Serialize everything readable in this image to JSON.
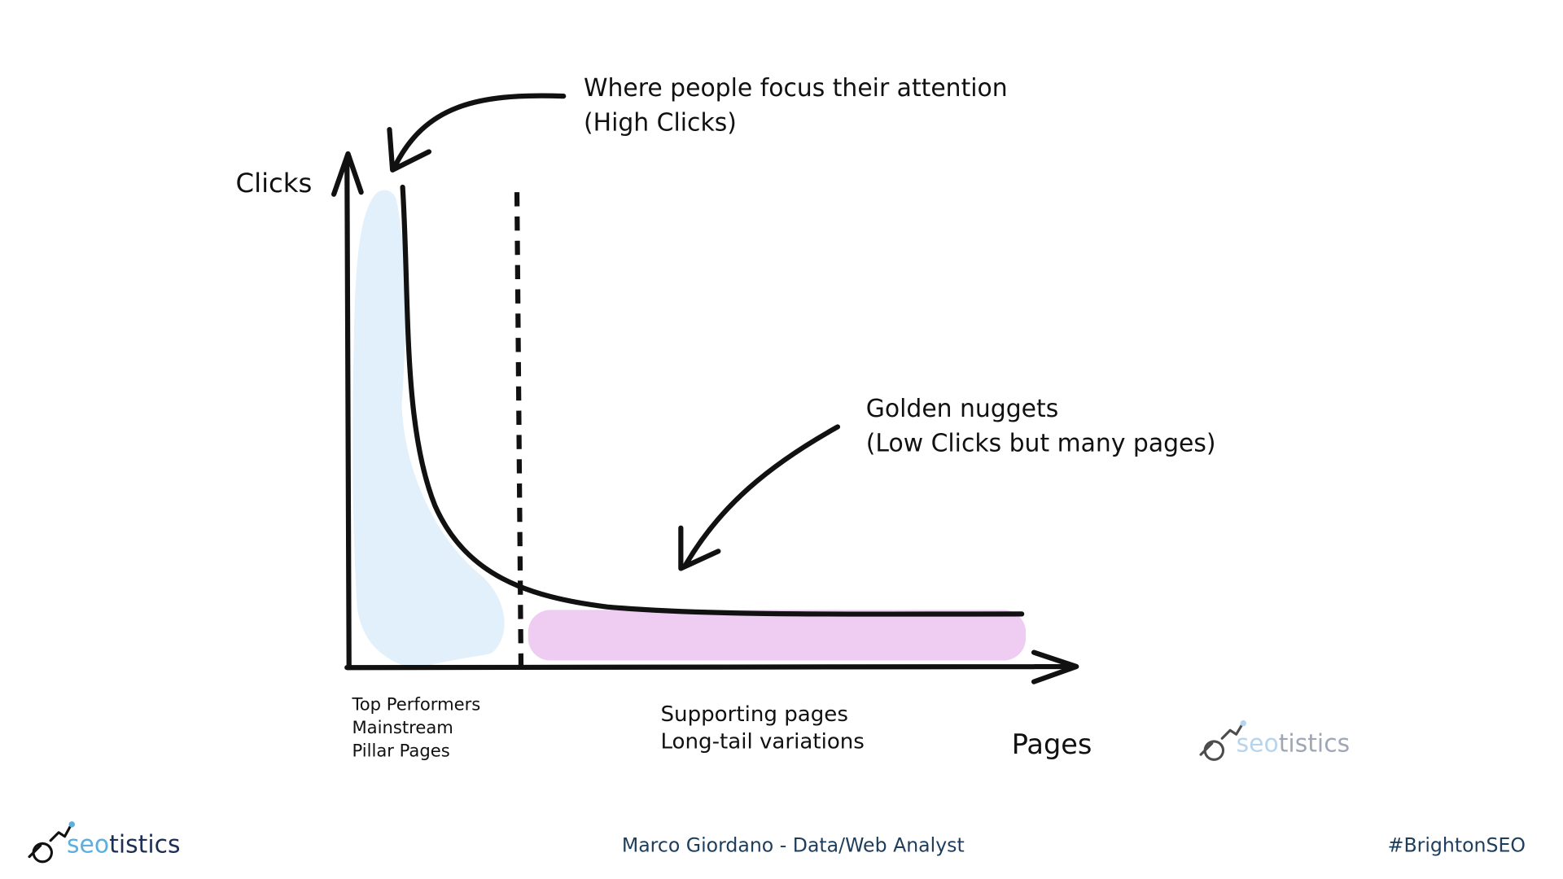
{
  "diagram": {
    "y_axis_label": "Clicks",
    "x_axis_label": "Pages",
    "annotations": [
      {
        "lines": [
          "Where people focus their attention",
          "(High Clicks)"
        ]
      },
      {
        "lines": [
          "Golden nuggets",
          "(Low Clicks but many pages)"
        ]
      }
    ],
    "regions": [
      {
        "lines": [
          "Top Performers",
          "Mainstream",
          "Pillar Pages"
        ]
      },
      {
        "lines": [
          "Supporting pages",
          "Long-tail variations"
        ]
      }
    ],
    "watermark": {
      "brand_parts": [
        "seo",
        "tistics"
      ]
    }
  },
  "footer": {
    "brand_parts": [
      "seo",
      "tistics"
    ],
    "presenter": "Marco Giordano - Data/Web Analyst",
    "hashtag": "#BrightonSEO"
  }
}
